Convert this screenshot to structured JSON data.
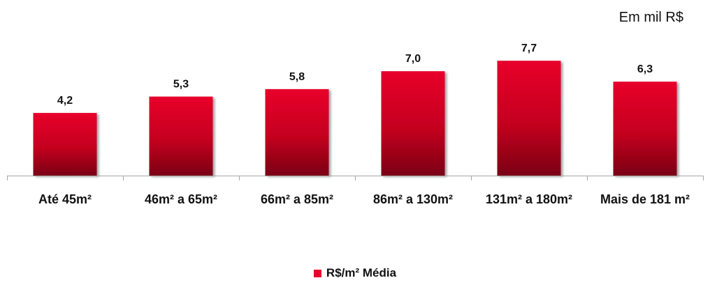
{
  "unit_note": "Em mil R$",
  "colors": {
    "bar_top": "#e8002a",
    "bar_bottom": "#7a0012",
    "axis": "#a6a6a6",
    "text": "#111111"
  },
  "chart_data": {
    "type": "bar",
    "categories": [
      "Até 45m²",
      "46m² a 65m²",
      "66m² a 85m²",
      "86m² a 130m²",
      "131m² a 180m²",
      "Mais de 181 m²"
    ],
    "series": [
      {
        "name": "R$/m² Média",
        "values": [
          4.2,
          5.3,
          5.8,
          7.0,
          7.7,
          6.3
        ],
        "labels": [
          "4,2",
          "5,3",
          "5,8",
          "7,0",
          "7,7",
          "6,3"
        ]
      }
    ],
    "title": "",
    "xlabel": "",
    "ylabel": "",
    "ylim": [
      0,
      9
    ],
    "grid": false,
    "legend_position": "bottom"
  }
}
